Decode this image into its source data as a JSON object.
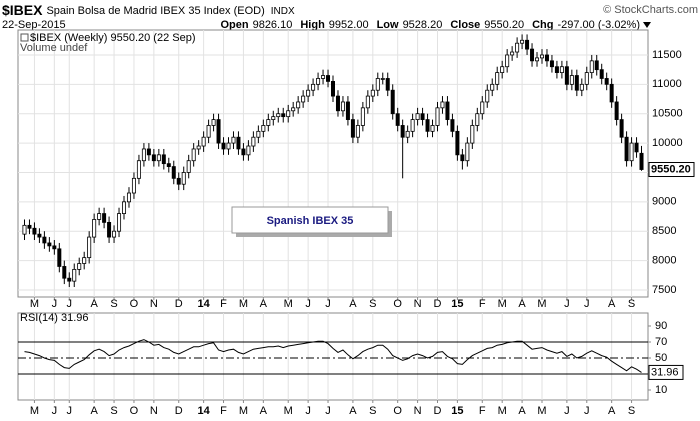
{
  "header": {
    "symbol": "$IBEX",
    "description": "Spain Bolsa de Madrid IBEX 35 Index (EOD)",
    "exchange": "INDX",
    "date": "22-Sep-2015",
    "copyright": "© StockCharts.com",
    "quote": [
      {
        "label": "Open",
        "value": "9826.10"
      },
      {
        "label": "High",
        "value": "9952.00"
      },
      {
        "label": "Low",
        "value": "9528.20"
      },
      {
        "label": "Close",
        "value": "9550.20"
      },
      {
        "label": "Chg",
        "value": "-297.00 (-3.02%)"
      }
    ]
  },
  "chart_data": [
    {
      "type": "candlestick",
      "legend": "$IBEX (Weekly) 9550.20 (22 Sep)",
      "volume_note": "Volume undef",
      "annotation": "Spanish IBEX 35",
      "last_label": "9550.20",
      "color": "#000000",
      "grid": true,
      "ylim": [
        7380,
        11925
      ],
      "yticks": [
        7500,
        8000,
        8500,
        9000,
        9500,
        10000,
        10500,
        11000,
        11500
      ],
      "xticks": [
        {
          "value": 2,
          "label": "M"
        },
        {
          "value": 6,
          "label": "J"
        },
        {
          "value": 9,
          "label": "J"
        },
        {
          "value": 14,
          "label": "A"
        },
        {
          "value": 18,
          "label": "S"
        },
        {
          "value": 22,
          "label": "O"
        },
        {
          "value": 26,
          "label": "N"
        },
        {
          "value": 31,
          "label": "D"
        },
        {
          "value": 36,
          "label": "14"
        },
        {
          "value": 40,
          "label": "F"
        },
        {
          "value": 44,
          "label": "M"
        },
        {
          "value": 48,
          "label": "A"
        },
        {
          "value": 53,
          "label": "M"
        },
        {
          "value": 57,
          "label": "J"
        },
        {
          "value": 61,
          "label": "J"
        },
        {
          "value": 66,
          "label": "A"
        },
        {
          "value": 70,
          "label": "S"
        },
        {
          "value": 75,
          "label": "O"
        },
        {
          "value": 79,
          "label": "N"
        },
        {
          "value": 83,
          "label": "D"
        },
        {
          "value": 87,
          "label": "15"
        },
        {
          "value": 92,
          "label": "F"
        },
        {
          "value": 96,
          "label": "M"
        },
        {
          "value": 100,
          "label": "A"
        },
        {
          "value": 104,
          "label": "M"
        },
        {
          "value": 109,
          "label": "J"
        },
        {
          "value": 113,
          "label": "J"
        },
        {
          "value": 118,
          "label": "A"
        },
        {
          "value": 122,
          "label": "S"
        }
      ],
      "open": [
        8450,
        8600,
        8550,
        8450,
        8400,
        8300,
        8250,
        8200,
        7900,
        7700,
        7650,
        7850,
        7950,
        8050,
        8400,
        8700,
        8800,
        8650,
        8400,
        8500,
        8800,
        9000,
        9150,
        9400,
        9700,
        9900,
        9800,
        9700,
        9800,
        9650,
        9600,
        9400,
        9300,
        9500,
        9700,
        9900,
        9950,
        10100,
        10300,
        10400,
        10000,
        9900,
        10000,
        10100,
        9900,
        9800,
        9950,
        10100,
        10200,
        10300,
        10400,
        10450,
        10500,
        10450,
        10550,
        10600,
        10700,
        10800,
        10900,
        11000,
        11100,
        11150,
        11050,
        10800,
        10550,
        10700,
        10400,
        10100,
        10300,
        10600,
        10800,
        10900,
        11100,
        11100,
        10900,
        10500,
        10300,
        10100,
        10200,
        10400,
        10500,
        10400,
        10200,
        10300,
        10600,
        10700,
        10400,
        10200,
        9800,
        9700,
        10000,
        10300,
        10500,
        10700,
        10900,
        11000,
        11200,
        11300,
        11500,
        11550,
        11700,
        11750,
        11600,
        11400,
        11450,
        11500,
        11400,
        11300,
        11200,
        11300,
        11000,
        11150,
        10900,
        11000,
        11200,
        11400,
        11250,
        11100,
        11000,
        10700,
        10400,
        10100,
        9700,
        10000,
        9826.1
      ],
      "high": [
        8700,
        8700,
        8650,
        8550,
        8500,
        8400,
        8350,
        8300,
        8000,
        7800,
        7950,
        8050,
        8150,
        8500,
        8800,
        8900,
        8900,
        8750,
        8600,
        8900,
        9100,
        9250,
        9500,
        9800,
        10000,
        10000,
        9900,
        9900,
        9900,
        9750,
        9700,
        9500,
        9600,
        9800,
        10000,
        10050,
        10200,
        10400,
        10500,
        10500,
        10100,
        10100,
        10200,
        10200,
        10000,
        10050,
        10200,
        10300,
        10400,
        10500,
        10550,
        10600,
        10600,
        10650,
        10700,
        10800,
        10900,
        11000,
        11100,
        11200,
        11250,
        11250,
        11150,
        10900,
        10800,
        10800,
        10500,
        10400,
        10700,
        10900,
        11000,
        11200,
        11200,
        11200,
        11000,
        10600,
        10400,
        10300,
        10500,
        10600,
        10600,
        10500,
        10400,
        10700,
        10800,
        10800,
        10500,
        10300,
        9900,
        10100,
        10400,
        10600,
        10800,
        11000,
        11100,
        11300,
        11400,
        11600,
        11650,
        11800,
        11850,
        11850,
        11700,
        11550,
        11600,
        11600,
        11500,
        11400,
        11400,
        11400,
        11250,
        11250,
        11100,
        11300,
        11500,
        11500,
        11350,
        11200,
        11100,
        10800,
        10500,
        10200,
        10100,
        10100,
        9952
      ],
      "low": [
        8350,
        8450,
        8350,
        8300,
        8200,
        8150,
        8100,
        7800,
        7600,
        7550,
        7550,
        7750,
        7850,
        7950,
        8300,
        8600,
        8550,
        8300,
        8300,
        8400,
        8700,
        8900,
        9050,
        9300,
        9600,
        9700,
        9600,
        9600,
        9550,
        9500,
        9300,
        9200,
        9200,
        9400,
        9600,
        9800,
        9850,
        10000,
        10200,
        9900,
        9800,
        9800,
        9900,
        9800,
        9700,
        9700,
        9850,
        10000,
        10100,
        10200,
        10300,
        10350,
        10350,
        10350,
        10450,
        10500,
        10600,
        10700,
        10800,
        10900,
        11000,
        10950,
        10700,
        10450,
        10450,
        10300,
        10000,
        10000,
        10200,
        10500,
        10700,
        10800,
        11000,
        10800,
        10400,
        10200,
        9400,
        10000,
        10100,
        10300,
        10300,
        10100,
        10100,
        10200,
        10500,
        10300,
        10100,
        9700,
        9550,
        9600,
        9900,
        10200,
        10400,
        10600,
        10800,
        10900,
        11100,
        11200,
        11400,
        11450,
        11600,
        11500,
        11300,
        11300,
        11350,
        11300,
        11200,
        11100,
        11100,
        10900,
        10900,
        10800,
        10800,
        10900,
        11100,
        11150,
        11000,
        10900,
        10600,
        10300,
        10000,
        9600,
        9600,
        9750,
        9528.2
      ],
      "close": [
        8600,
        8550,
        8450,
        8400,
        8300,
        8250,
        8200,
        7900,
        7700,
        7650,
        7850,
        7950,
        8050,
        8400,
        8700,
        8800,
        8650,
        8400,
        8500,
        8800,
        9000,
        9150,
        9400,
        9700,
        9900,
        9800,
        9700,
        9800,
        9650,
        9600,
        9400,
        9300,
        9500,
        9700,
        9900,
        9950,
        10100,
        10300,
        10400,
        10000,
        9900,
        10000,
        10100,
        9900,
        9800,
        9950,
        10100,
        10200,
        10300,
        10400,
        10450,
        10500,
        10450,
        10550,
        10600,
        10700,
        10800,
        10900,
        11000,
        11100,
        11150,
        11050,
        10800,
        10550,
        10700,
        10400,
        10100,
        10300,
        10600,
        10800,
        10900,
        11100,
        11100,
        10900,
        10500,
        10300,
        10100,
        10200,
        10400,
        10500,
        10400,
        10200,
        10300,
        10600,
        10700,
        10400,
        10200,
        9800,
        9700,
        10000,
        10300,
        10500,
        10700,
        10900,
        11000,
        11200,
        11300,
        11500,
        11550,
        11700,
        11750,
        11600,
        11400,
        11450,
        11500,
        11400,
        11300,
        11200,
        11300,
        11000,
        11150,
        10900,
        11000,
        11200,
        11400,
        11250,
        11100,
        11000,
        10700,
        10400,
        10100,
        9700,
        10000,
        9850,
        9550.2
      ]
    },
    {
      "type": "line",
      "legend": "RSI(14) 31.96",
      "last_label": "31.96",
      "color": "#000000",
      "ylim": [
        -2.5,
        106.25
      ],
      "yticks": [
        10,
        30,
        50,
        70,
        90
      ],
      "bands": [
        30,
        70
      ],
      "midline": 50,
      "values": [
        58,
        57,
        55,
        53,
        50,
        48,
        47,
        42,
        38,
        37,
        42,
        45,
        48,
        54,
        59,
        61,
        58,
        53,
        55,
        60,
        63,
        65,
        68,
        71,
        73,
        70,
        66,
        67,
        63,
        61,
        57,
        55,
        58,
        61,
        64,
        64,
        66,
        68,
        69,
        60,
        58,
        60,
        61,
        57,
        55,
        58,
        61,
        62,
        63,
        64,
        64,
        65,
        63,
        65,
        66,
        67,
        68,
        69,
        70,
        71,
        71,
        68,
        62,
        57,
        60,
        54,
        49,
        53,
        58,
        61,
        63,
        66,
        66,
        61,
        53,
        50,
        47,
        49,
        53,
        55,
        53,
        50,
        52,
        57,
        58,
        52,
        49,
        43,
        42,
        48,
        53,
        56,
        59,
        62,
        63,
        66,
        67,
        69,
        70,
        71,
        71,
        66,
        61,
        62,
        63,
        60,
        58,
        56,
        58,
        52,
        55,
        50,
        52,
        56,
        59,
        56,
        53,
        51,
        46,
        42,
        38,
        34,
        39,
        36,
        31.96
      ]
    }
  ]
}
